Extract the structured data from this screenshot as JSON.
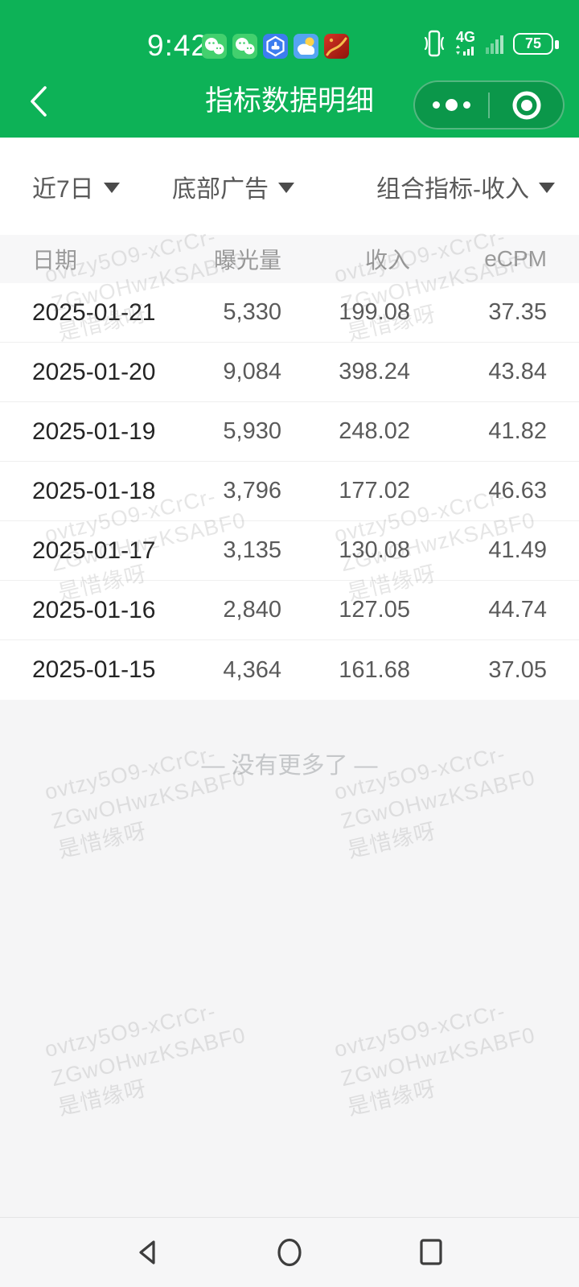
{
  "status_bar": {
    "time": "9:42",
    "network": "4G",
    "battery_percent": "75",
    "notification_icons": [
      "wechat-icon",
      "wechat-icon",
      "miniprogram-assistant-icon",
      "weather-icon",
      "red-packet-icon"
    ],
    "right_icons": [
      "vibrate-icon",
      "signal-bars-icon",
      "wifi-bars-icon",
      "battery-icon"
    ]
  },
  "nav_header": {
    "title": "指标数据明细",
    "back_icon": "chevron-left-icon",
    "capsule": {
      "more_icon": "ellipsis-icon",
      "exit_icon": "target-circle-icon"
    }
  },
  "filters": [
    {
      "label": "近7日"
    },
    {
      "label": "底部广告"
    },
    {
      "label": "组合指标-收入"
    }
  ],
  "table": {
    "columns": [
      "日期",
      "曝光量",
      "收入",
      "eCPM"
    ],
    "rows": [
      [
        "2025-01-21",
        "5,330",
        "199.08",
        "37.35"
      ],
      [
        "2025-01-20",
        "9,084",
        "398.24",
        "43.84"
      ],
      [
        "2025-01-19",
        "5,930",
        "248.02",
        "41.82"
      ],
      [
        "2025-01-18",
        "3,796",
        "177.02",
        "46.63"
      ],
      [
        "2025-01-17",
        "3,135",
        "130.08",
        "41.49"
      ],
      [
        "2025-01-16",
        "2,840",
        "127.05",
        "44.74"
      ],
      [
        "2025-01-15",
        "4,364",
        "161.68",
        "37.05"
      ]
    ]
  },
  "footer": {
    "no_more": "—  没有更多了  —"
  },
  "watermark": {
    "lines": [
      "ovtzy5O9-xCrCr-",
      "ZGwOHwzKSABF0",
      "是惜缘呀"
    ]
  },
  "android_nav": {
    "buttons": [
      "back",
      "home",
      "recents"
    ]
  },
  "colors": {
    "header_green": "#0DB257",
    "capsule_green": "#0A9A4A",
    "wechat_icon_green": "#43D06E",
    "table_header_bg": "#F7F7F8",
    "page_bg": "#F5F5F6",
    "date_text": "#242424",
    "value_text": "#5A5A5A",
    "muted_text": "#9A9A9A",
    "no_more_text": "#C5C7C9"
  }
}
